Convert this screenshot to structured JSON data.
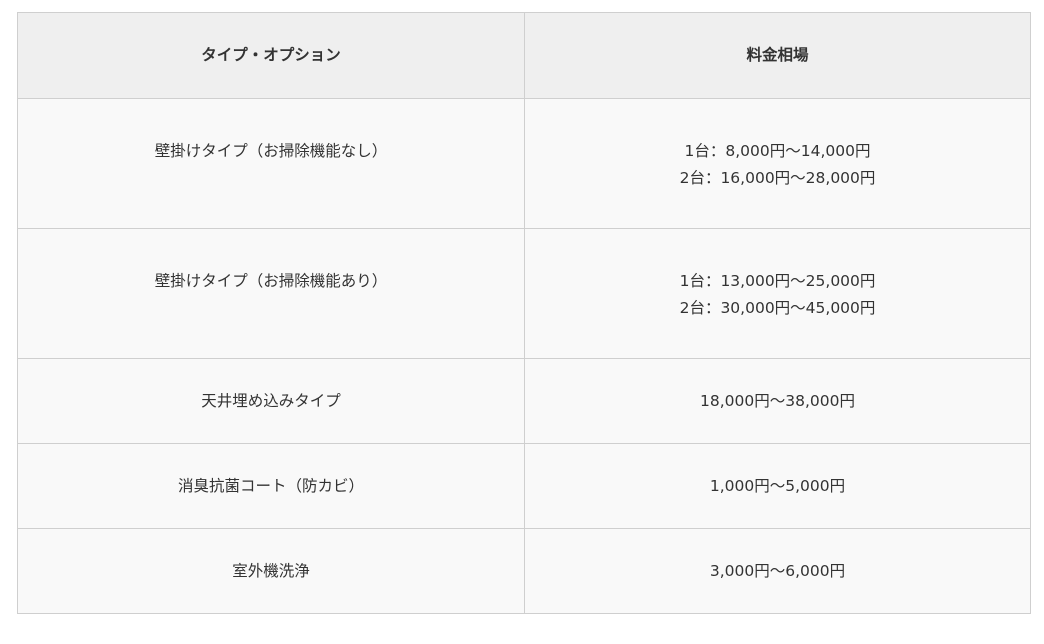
{
  "table": {
    "headers": [
      "タイプ・オプション",
      "料金相場"
    ],
    "rows": [
      {
        "type": "壁掛けタイプ（お掃除機能なし）",
        "price": [
          "1台：8,000円〜14,000円",
          "2台：16,000円〜28,000円"
        ]
      },
      {
        "type": "壁掛けタイプ（お掃除機能あり）",
        "price": [
          "1台：13,000円〜25,000円",
          "2台：30,000円〜45,000円"
        ]
      },
      {
        "type": "天井埋め込みタイプ",
        "price": [
          "18,000円〜38,000円"
        ]
      },
      {
        "type": "消臭抗菌コート（防カビ）",
        "price": [
          "1,000円〜5,000円"
        ]
      },
      {
        "type": "室外機洗浄",
        "price": [
          "3,000円〜6,000円"
        ]
      }
    ]
  },
  "colors": {
    "header_bg": "#efefef",
    "cell_bg": "#f9f9f9",
    "border": "#cfcfcf",
    "text": "#333333"
  }
}
